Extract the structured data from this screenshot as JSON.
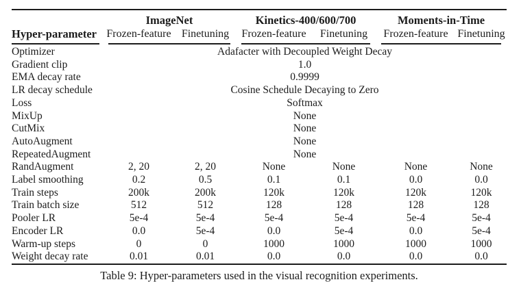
{
  "colors": {
    "background": "#ffffff",
    "text": "#1b1b1b",
    "rule": "#1b1b1b"
  },
  "table": {
    "param_header": "Hyper-parameter",
    "groups": [
      {
        "label": "ImageNet",
        "sub": [
          "Frozen-feature",
          "Finetuning"
        ]
      },
      {
        "label": "Kinetics-400/600/700",
        "sub": [
          "Frozen-feature",
          "Finetuning"
        ]
      },
      {
        "label": "Moments-in-Time",
        "sub": [
          "Frozen-feature",
          "Finetuning"
        ]
      }
    ],
    "rows": [
      {
        "param": "Optimizer",
        "span": "Adafacter with Decoupled Weight Decay"
      },
      {
        "param": "Gradient clip",
        "span": "1.0"
      },
      {
        "param": "EMA decay rate",
        "span": "0.9999"
      },
      {
        "param": "LR decay schedule",
        "span": "Cosine Schedule Decaying to Zero"
      },
      {
        "param": "Loss",
        "span": "Softmax"
      },
      {
        "param": "MixUp",
        "span": "None"
      },
      {
        "param": "CutMix",
        "span": "None"
      },
      {
        "param": "AutoAugment",
        "span": "None"
      },
      {
        "param": "RepeatedAugment",
        "span": "None"
      },
      {
        "param": "RandAugment",
        "values": [
          "2, 20",
          "2, 20",
          "None",
          "None",
          "None",
          "None"
        ]
      },
      {
        "param": "Label smoothing",
        "values": [
          "0.2",
          "0.5",
          "0.1",
          "0.1",
          "0.0",
          "0.0"
        ]
      },
      {
        "param": "Train steps",
        "values": [
          "200k",
          "200k",
          "120k",
          "120k",
          "120k",
          "120k"
        ]
      },
      {
        "param": "Train batch size",
        "values": [
          "512",
          "512",
          "128",
          "128",
          "128",
          "128"
        ]
      },
      {
        "param": "Pooler LR",
        "values": [
          "5e-4",
          "5e-4",
          "5e-4",
          "5e-4",
          "5e-4",
          "5e-4"
        ]
      },
      {
        "param": "Encoder LR",
        "values": [
          "0.0",
          "5e-4",
          "0.0",
          "5e-4",
          "0.0",
          "5e-4"
        ]
      },
      {
        "param": "Warm-up steps",
        "values": [
          "0",
          "0",
          "1000",
          "1000",
          "1000",
          "1000"
        ]
      },
      {
        "param": "Weight decay rate",
        "values": [
          "0.01",
          "0.01",
          "0.0",
          "0.0",
          "0.0",
          "0.0"
        ]
      }
    ],
    "caption": "Table 9: Hyper-parameters used in the visual recognition experiments."
  }
}
